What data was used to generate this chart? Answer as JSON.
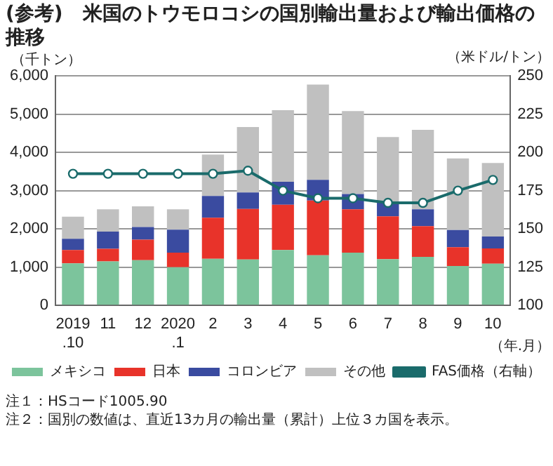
{
  "chart_data": {
    "type": "bar",
    "title": "(参考)　米国のトウモロコシの国別輸出量および輸出価格の推移",
    "ylabel": "（千トン）",
    "y2label": "（米ドル/トン）",
    "xlabel": "（年.月）",
    "annotations": [
      "注１：HSコード1005.90",
      "注２：国別の数値は、直近13カ月の輸出量（累計）上位３カ国を表示。"
    ],
    "categories": [
      "2019\n.10",
      "11",
      "12",
      "2020\n.1",
      "2",
      "3",
      "4",
      "5",
      "6",
      "7",
      "8",
      "9",
      "10"
    ],
    "stacked": true,
    "grid": "y",
    "legend": "bottom",
    "ylim": [
      0,
      6000
    ],
    "yticks": [
      {
        "value": 0,
        "label": "0"
      },
      {
        "value": 1000,
        "label": "1,000"
      },
      {
        "value": 2000,
        "label": "2,000"
      },
      {
        "value": 3000,
        "label": "3,000"
      },
      {
        "value": 4000,
        "label": "4,000"
      },
      {
        "value": 5000,
        "label": "5,000"
      },
      {
        "value": 6000,
        "label": "6,000"
      }
    ],
    "y2lim": [
      100,
      250
    ],
    "y2ticks": [
      100,
      125,
      150,
      175,
      200,
      225,
      250
    ],
    "series": [
      {
        "name": "メキシコ",
        "color": "#7cc49c",
        "values": [
          1100,
          1150,
          1180,
          1000,
          1220,
          1200,
          1450,
          1310,
          1380,
          1210,
          1270,
          1030,
          1090
        ]
      },
      {
        "name": "日本",
        "color": "#e8332a",
        "values": [
          350,
          330,
          540,
          380,
          1070,
          1320,
          1180,
          1430,
          1130,
          1120,
          800,
          490,
          400
        ]
      },
      {
        "name": "コロンビア",
        "color": "#3a4ba0",
        "values": [
          290,
          450,
          330,
          600,
          570,
          430,
          600,
          540,
          400,
          370,
          440,
          450,
          310
        ]
      },
      {
        "name": "その他",
        "color": "#c0c0c0",
        "values": [
          580,
          580,
          540,
          530,
          1080,
          1710,
          1870,
          2490,
          2170,
          1700,
          2080,
          1870,
          1920
        ]
      },
      {
        "name": "FAS価格（右軸）",
        "type": "line",
        "axis": "y2",
        "color": "#1a6b6b",
        "marker": "circle",
        "values": [
          186,
          186,
          186,
          186,
          186,
          188,
          175,
          170,
          170,
          167,
          167,
          175,
          182
        ]
      }
    ]
  }
}
